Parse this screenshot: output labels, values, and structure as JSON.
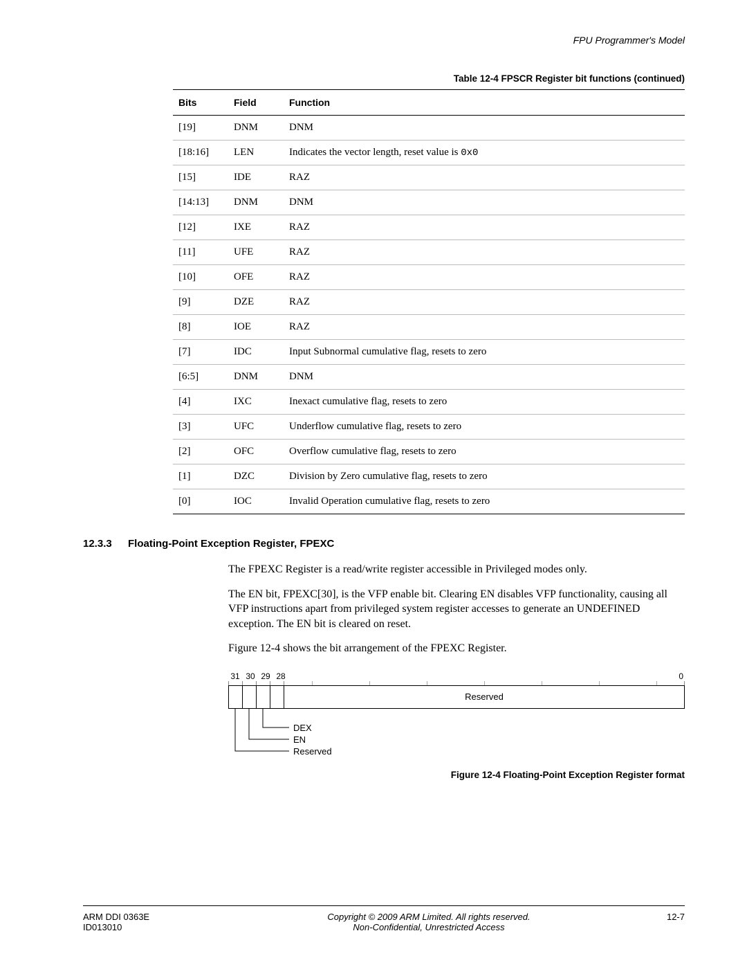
{
  "header": {
    "chapter_title": "FPU Programmer's Model"
  },
  "table": {
    "caption": "Table 12-4 FPSCR Register bit functions (continued)",
    "columns": [
      "Bits",
      "Field",
      "Function"
    ],
    "rows": [
      {
        "bits": "[19]",
        "field": "DNM",
        "func": "DNM"
      },
      {
        "bits": "[18:16]",
        "field": "LEN",
        "func_prefix": "Indicates the vector length, reset value is ",
        "func_mono": "0x0"
      },
      {
        "bits": "[15]",
        "field": "IDE",
        "func": "RAZ"
      },
      {
        "bits": "[14:13]",
        "field": "DNM",
        "func": "DNM"
      },
      {
        "bits": "[12]",
        "field": "IXE",
        "func": "RAZ"
      },
      {
        "bits": "[11]",
        "field": "UFE",
        "func": "RAZ"
      },
      {
        "bits": "[10]",
        "field": "OFE",
        "func": "RAZ"
      },
      {
        "bits": "[9]",
        "field": "DZE",
        "func": "RAZ"
      },
      {
        "bits": "[8]",
        "field": "IOE",
        "func": "RAZ"
      },
      {
        "bits": "[7]",
        "field": "IDC",
        "func": "Input Subnormal cumulative flag, resets to zero"
      },
      {
        "bits": "[6:5]",
        "field": "DNM",
        "func": "DNM"
      },
      {
        "bits": "[4]",
        "field": "IXC",
        "func": "Inexact cumulative flag, resets to zero"
      },
      {
        "bits": "[3]",
        "field": "UFC",
        "func": "Underflow cumulative flag, resets to zero"
      },
      {
        "bits": "[2]",
        "field": "OFC",
        "func": "Overflow cumulative flag, resets to zero"
      },
      {
        "bits": "[1]",
        "field": "DZC",
        "func": "Division by Zero cumulative flag, resets to zero"
      },
      {
        "bits": "[0]",
        "field": "IOC",
        "func": "Invalid Operation cumulative flag, resets to zero"
      }
    ]
  },
  "section": {
    "number": "12.3.3",
    "title": "Floating-Point Exception Register, FPEXC",
    "para1": "The FPEXC Register is a read/write register accessible in Privileged modes only.",
    "para2": "The EN bit, FPEXC[30], is the VFP enable bit. Clearing EN disables VFP functionality, causing all VFP instructions apart from privileged system register accesses to generate an UNDEFINED exception. The EN bit is cleared on reset.",
    "para3": "Figure 12-4 shows the bit arrangement of the FPEXC Register."
  },
  "diagram": {
    "bit_left": [
      "31",
      "30",
      "29",
      "28"
    ],
    "bit_right": "0",
    "reserved_label": "Reserved",
    "callouts": [
      "DEX",
      "EN",
      "Reserved"
    ]
  },
  "figure_caption": "Figure 12-4 Floating-Point Exception Register format",
  "footer": {
    "doc_id": "ARM DDI 0363E",
    "doc_sub": "ID013010",
    "copyright": "Copyright © 2009 ARM Limited. All rights reserved.",
    "classification": "Non-Confidential, Unrestricted Access",
    "page": "12-7"
  }
}
